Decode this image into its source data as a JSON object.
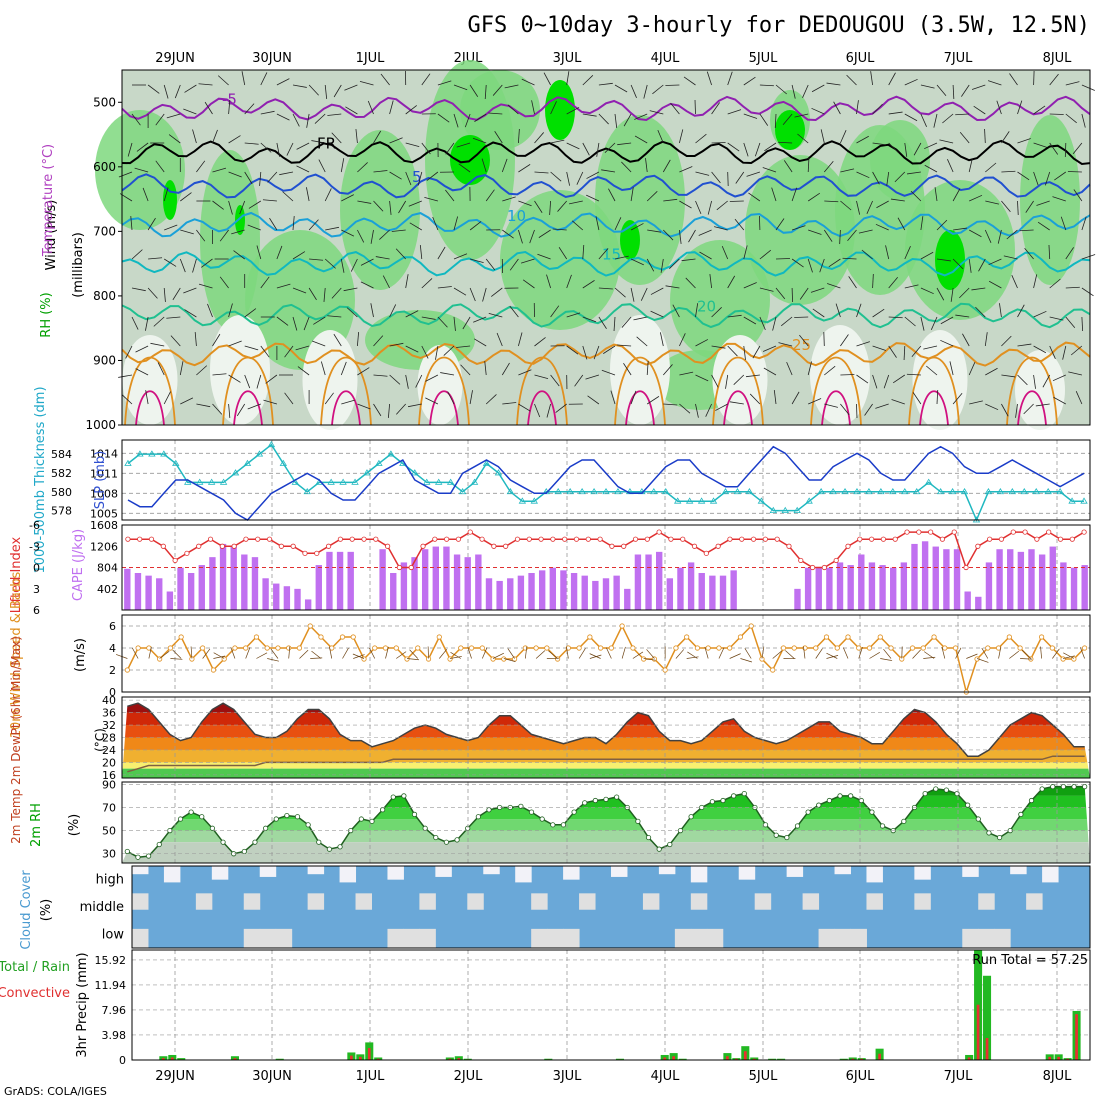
{
  "title": "GFS 0~10day 3-hourly for DEDOUGOU (3.5W, 12.5N)",
  "credit": "GrADS: COLA/IGES",
  "colors": {
    "rh_light": "#c8d8c8",
    "rh_mid": "#7ed87e",
    "rh_high": "#00e000",
    "slp": "#1a3cc8",
    "thickness": "#20b8c0",
    "lifted_index": "#e03030",
    "cape": "#c070f0",
    "wind10m": "#e09020",
    "rh2m": "#00b000",
    "cloud": "#6aa8d8",
    "cloud_bg": "#e0e0e0",
    "precip_total": "#22b822",
    "precip_conv": "#e83030"
  },
  "chart_data": [
    {
      "id": "upper-air",
      "type": "heatmap",
      "x_tick_labels": [
        "29JUN",
        "30JUN",
        "1JUL",
        "2JUL",
        "3JUL",
        "4JUL",
        "5JUL",
        "6JUL",
        "7JUL",
        "8JUL"
      ],
      "ylabel_parts": [
        "RH (%)",
        "Temperature (°C)",
        "Wind (m/s)"
      ],
      "ylabel_units": "(millibars)",
      "y_ticks": [
        500,
        600,
        700,
        800,
        900,
        1000
      ],
      "ylim": [
        450,
        1000
      ],
      "contour_labels": [
        "-5",
        "FR",
        "5",
        "10",
        "15",
        "20",
        "25"
      ],
      "isotherms": [
        {
          "label": "-5",
          "color": "#9020b0",
          "level": 510
        },
        {
          "label": "FR",
          "color": "#000000",
          "level": 578
        },
        {
          "label": "5",
          "color": "#2050d0",
          "level": 630
        },
        {
          "label": "10",
          "color": "#1aa0d8",
          "level": 690
        },
        {
          "label": "15",
          "color": "#10b8c0",
          "level": 750
        },
        {
          "label": "20",
          "color": "#20c090",
          "level": 830
        },
        {
          "label": "25",
          "color": "#e09020",
          "level": 890
        }
      ]
    },
    {
      "id": "slp-thickness",
      "type": "line",
      "ylabel_left": "1000-500mb Thickness (dm)",
      "ylabel_right": "SLP (mb)",
      "thickness_ticks": [
        584,
        582,
        580,
        578
      ],
      "slp_ticks": [
        1014,
        1011,
        1008,
        1005
      ],
      "slp_range": [
        1004,
        1016
      ],
      "thickness_range": [
        577,
        585.5
      ],
      "series": [
        {
          "name": "SLP (mb)",
          "values": [
            1007,
            1006,
            1006,
            1008,
            1010,
            1010,
            1009,
            1008,
            1007,
            1005,
            1004,
            1006,
            1008,
            1009,
            1010,
            1011,
            1010,
            1008,
            1007,
            1007,
            1009,
            1011,
            1012,
            1013,
            1010,
            1009,
            1008,
            1008,
            1011,
            1012,
            1013,
            1012,
            1010,
            1009,
            1008,
            1008,
            1010,
            1012,
            1013,
            1013,
            1011,
            1009,
            1008,
            1008,
            1010,
            1012,
            1013,
            1013,
            1011,
            1010,
            1009,
            1009,
            1011,
            1013,
            1015,
            1014,
            1012,
            1010,
            1010,
            1012,
            1013,
            1014,
            1013,
            1011,
            1010,
            1010,
            1012,
            1014,
            1015,
            1014,
            1012,
            1011,
            1011,
            1012,
            1013,
            1012,
            1011,
            1010,
            1009,
            1010,
            1011
          ]
        },
        {
          "name": "1000-500mb Thickness (dm)",
          "values": [
            583,
            584,
            584,
            584,
            583,
            581,
            581,
            581,
            581,
            582,
            583,
            584,
            585,
            583,
            581,
            580,
            581,
            581,
            581,
            581,
            582,
            583,
            584,
            583,
            582,
            581,
            581,
            581,
            580,
            581,
            583,
            582,
            580,
            579,
            579,
            580,
            580,
            580,
            580,
            580,
            580,
            580,
            580,
            580,
            580,
            580,
            579,
            579,
            579,
            579,
            580,
            580,
            580,
            579,
            578,
            578,
            578,
            579,
            580,
            580,
            580,
            580,
            580,
            580,
            580,
            580,
            580,
            581,
            580,
            580,
            580,
            577,
            580,
            580,
            580,
            580,
            580,
            580,
            580,
            579,
            579
          ]
        }
      ]
    },
    {
      "id": "lifted-index-cape",
      "type": "bar",
      "ylabel_left": "Lifted Index",
      "ylabel_right": "CAPE (J/kg)",
      "li_ticks": [
        "-6",
        "-3",
        "0",
        "3",
        "6"
      ],
      "cape_ticks": [
        1608,
        1206,
        804,
        402
      ],
      "li_range": [
        -6,
        6
      ],
      "cape_range": [
        0,
        1608
      ],
      "series": [
        {
          "name": "Lifted Index",
          "values": [
            -4,
            -4,
            -4,
            -3,
            -1,
            -2,
            -3,
            -4,
            -3,
            -3,
            -4,
            -4,
            -4,
            -3,
            -3,
            -2,
            -2,
            -3,
            -4,
            -4,
            -4,
            -4,
            -3,
            0,
            0,
            -3,
            -4,
            -4,
            -4,
            -5,
            -4,
            -3,
            -3,
            -4,
            -4,
            -4,
            -4,
            -4,
            -4,
            -4,
            -4,
            -3,
            -3,
            -4,
            -4,
            -5,
            -4,
            -4,
            -3,
            -2,
            -3,
            -4,
            -4,
            -4,
            -4,
            -4,
            -3,
            -1,
            0,
            0,
            -1,
            -3,
            -4,
            -4,
            -4,
            -4,
            -5,
            -5,
            -5,
            -4,
            -5,
            0,
            -3,
            -4,
            -4,
            -5,
            -5,
            -4,
            -5,
            -4,
            -4,
            -5
          ]
        },
        {
          "name": "CAPE (J/kg)",
          "values": [
            780,
            700,
            650,
            600,
            350,
            800,
            700,
            850,
            1000,
            1250,
            1200,
            1050,
            1000,
            600,
            500,
            450,
            400,
            200,
            850,
            1100,
            1100,
            1100,
            10,
            10,
            1150,
            700,
            900,
            1000,
            1150,
            1200,
            1200,
            1050,
            1000,
            1050,
            600,
            550,
            600,
            650,
            700,
            750,
            800,
            750,
            700,
            650,
            550,
            600,
            650,
            400,
            1050,
            1050,
            1100,
            600,
            800,
            900,
            700,
            650,
            650,
            750,
            10,
            10,
            10,
            10,
            10,
            400,
            800,
            800,
            800,
            900,
            850,
            1050,
            900,
            850,
            800,
            900,
            1250,
            1300,
            1200,
            1150,
            1150,
            350,
            250,
            900,
            1150,
            1150,
            1100,
            1150,
            1050,
            1200,
            900,
            800,
            850
          ]
        }
      ]
    },
    {
      "id": "wind10m",
      "type": "line",
      "ylabel": "10m Wind Speed & Barbs",
      "units": "(m/s)",
      "y_ticks": [
        6,
        4,
        2,
        0
      ],
      "ylim": [
        0,
        7
      ],
      "series": [
        {
          "name": "10m Wind Speed",
          "values": [
            2,
            4,
            4,
            3,
            4,
            5,
            3,
            4,
            2,
            3,
            4,
            4,
            5,
            4,
            4,
            4,
            4,
            6,
            5,
            4,
            5,
            5,
            3,
            4,
            4,
            4,
            3,
            4,
            3,
            5,
            3,
            4,
            4,
            4,
            3,
            3,
            3,
            4,
            4,
            4,
            3,
            4,
            4,
            5,
            4,
            4,
            6,
            4,
            3,
            3,
            2,
            4,
            5,
            4,
            4,
            4,
            4,
            5,
            6,
            3,
            2,
            4,
            4,
            4,
            4,
            5,
            4,
            5,
            4,
            4,
            5,
            4,
            3,
            4,
            4,
            5,
            4,
            4,
            0,
            3,
            4,
            4,
            5,
            4,
            3,
            5,
            4,
            3,
            3,
            4
          ]
        }
      ]
    },
    {
      "id": "temp2m",
      "type": "area",
      "ylabel": "2m Temp 2m DewPt (6hr Min/Max)",
      "units": "(°C)",
      "y_ticks": [
        40,
        36,
        32,
        28,
        24,
        20,
        16
      ],
      "ylim": [
        15,
        41
      ],
      "series": [
        {
          "name": "2m Temp",
          "values": [
            38,
            39,
            37,
            33,
            29,
            27,
            28,
            33,
            37,
            39,
            37,
            33,
            29,
            28,
            28,
            30,
            34,
            37,
            37,
            34,
            29,
            27,
            27,
            25,
            26,
            27,
            29,
            31,
            32,
            31,
            29,
            28,
            27,
            28,
            32,
            35,
            35,
            32,
            29,
            28,
            27,
            26,
            27,
            28,
            28,
            26,
            29,
            33,
            36,
            35,
            30,
            27,
            27,
            26,
            27,
            30,
            33,
            34,
            30,
            28,
            27,
            26,
            27,
            29,
            31,
            33,
            33,
            30,
            29,
            28,
            26,
            26,
            30,
            34,
            37,
            36,
            33,
            29,
            26,
            22,
            22,
            24,
            28,
            32,
            34,
            36,
            35,
            32,
            29,
            25,
            25
          ]
        },
        {
          "name": "2m DewPt",
          "values": [
            17,
            18,
            19,
            19,
            19,
            19,
            19,
            19,
            19,
            19,
            19,
            19,
            19,
            20,
            20,
            20,
            20,
            20,
            20,
            20,
            20,
            20,
            20,
            20,
            20,
            21,
            21,
            21,
            21,
            21,
            21,
            21,
            21,
            21,
            21,
            21,
            21,
            21,
            21,
            21,
            21,
            21,
            21,
            21,
            21,
            21,
            21,
            21,
            21,
            21,
            21,
            21,
            21,
            21,
            21,
            21,
            21,
            21,
            21,
            21,
            21,
            21,
            21,
            21,
            21,
            21,
            21,
            21,
            21,
            21,
            21,
            21,
            21,
            21,
            21,
            21,
            21,
            21,
            21,
            21,
            21,
            21,
            21,
            21,
            21,
            21,
            21,
            22,
            22,
            22,
            22
          ]
        }
      ]
    },
    {
      "id": "rh2m",
      "type": "area",
      "ylabel": "2m RH",
      "units": "(%)",
      "y_ticks": [
        90,
        70,
        50,
        30
      ],
      "ylim": [
        22,
        92
      ],
      "series": [
        {
          "name": "2m RH",
          "values": [
            32,
            27,
            28,
            38,
            50,
            60,
            66,
            62,
            52,
            40,
            30,
            32,
            40,
            52,
            60,
            63,
            62,
            55,
            40,
            34,
            36,
            50,
            60,
            58,
            68,
            79,
            80,
            64,
            52,
            44,
            40,
            42,
            52,
            62,
            68,
            70,
            70,
            71,
            66,
            60,
            55,
            55,
            66,
            74,
            76,
            77,
            79,
            70,
            58,
            44,
            34,
            38,
            50,
            62,
            70,
            75,
            76,
            80,
            82,
            70,
            55,
            46,
            44,
            54,
            66,
            72,
            76,
            80,
            80,
            76,
            66,
            54,
            50,
            58,
            70,
            82,
            86,
            85,
            82,
            72,
            60,
            48,
            44,
            50,
            64,
            76,
            86,
            88,
            88,
            88,
            88
          ]
        }
      ]
    },
    {
      "id": "cloud-cover",
      "type": "heatmap",
      "ylabel": "Cloud Cover",
      "units": "(%)",
      "layers": [
        "high",
        "middle",
        "low"
      ]
    },
    {
      "id": "precip",
      "type": "bar",
      "ylabel_left": "Total / Rain",
      "ylabel_left2": "Convective",
      "ylabel_right": "3hr Precip (mm)",
      "y_ticks": [
        15.92,
        11.94,
        7.96,
        3.98,
        0
      ],
      "ylim": [
        0,
        17.5
      ],
      "run_total_label": "Run Total = 57.25",
      "series": [
        {
          "name": "Total",
          "values": [
            0,
            0,
            0,
            0.6,
            0.8,
            0.3,
            0,
            0,
            0,
            0,
            0,
            0.6,
            0,
            0,
            0,
            0,
            0.2,
            0,
            0,
            0,
            0,
            0,
            0,
            0,
            1.2,
            0.9,
            2.8,
            0.4,
            0,
            0,
            0,
            0,
            0,
            0,
            0,
            0.4,
            0.6,
            0.2,
            0,
            0,
            0,
            0,
            0,
            0,
            0,
            0,
            0.2,
            0,
            0,
            0,
            0,
            0,
            0,
            0,
            0.2,
            0,
            0,
            0,
            0,
            0.8,
            1.1,
            0.2,
            0,
            0,
            0,
            0,
            1.1,
            0.3,
            2.2,
            0.4,
            0,
            0.2,
            0.2,
            0,
            0,
            0,
            0,
            0,
            0,
            0.2,
            0.4,
            0.3,
            0,
            1.8,
            0,
            0,
            0,
            0,
            0,
            0,
            0,
            0,
            0,
            0.8,
            17.5,
            13.4,
            0,
            0,
            0,
            0,
            0,
            0,
            0.9,
            0.9,
            0.3,
            7.8,
            0
          ]
        },
        {
          "name": "Convective",
          "values": [
            0,
            0,
            0,
            0.3,
            0.4,
            0.1,
            0,
            0,
            0,
            0,
            0,
            0.3,
            0,
            0,
            0,
            0,
            0.1,
            0,
            0,
            0,
            0,
            0,
            0,
            0,
            0.7,
            0.5,
            1.9,
            0.2,
            0,
            0,
            0,
            0,
            0,
            0,
            0,
            0.2,
            0.3,
            0.1,
            0,
            0,
            0,
            0,
            0,
            0,
            0,
            0,
            0.1,
            0,
            0,
            0,
            0,
            0,
            0,
            0,
            0.1,
            0,
            0,
            0,
            0,
            0.4,
            0.6,
            0.1,
            0,
            0,
            0,
            0,
            0.6,
            0.2,
            1.4,
            0.2,
            0,
            0.1,
            0.1,
            0,
            0,
            0,
            0,
            0,
            0,
            0.1,
            0.2,
            0.2,
            0,
            1.0,
            0,
            0,
            0,
            0,
            0,
            0,
            0,
            0,
            0,
            0.4,
            8.8,
            3.5,
            0,
            0,
            0,
            0,
            0,
            0,
            0.5,
            0.5,
            0.2,
            7.3,
            0
          ]
        }
      ]
    }
  ]
}
